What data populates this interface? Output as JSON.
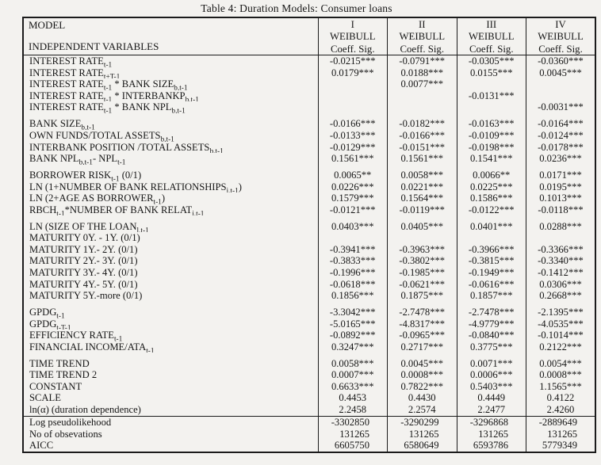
{
  "page": {
    "title": "Table 4: Duration Models: Consumer loans"
  },
  "colors": {
    "background": "#f3f2ef",
    "text": "#161616",
    "rule": "#1b1b1b"
  },
  "table": {
    "corner": {
      "top": "MODEL",
      "bottom": "INDEPENDENT VARIABLES"
    },
    "columns": [
      {
        "numeral": "I",
        "model": "WEIBULL",
        "stat": "Coeff. Sig."
      },
      {
        "numeral": "II",
        "model": "WEIBULL",
        "stat": "Coeff. Sig."
      },
      {
        "numeral": "III",
        "model": "WEIBULL",
        "stat": "Coeff. Sig."
      },
      {
        "numeral": "IV",
        "model": "WEIBULL",
        "stat": "Coeff. Sig."
      }
    ],
    "groups": [
      {
        "rows": [
          {
            "label": "INTEREST RATE_{t-1}",
            "values": [
              "-0.0215***",
              "-0.0791***",
              "-0.0305***",
              "-0.0360***"
            ]
          },
          {
            "label": "INTEREST RATE_{t+T-1}",
            "values": [
              "0.0179***",
              "0.0188***",
              "0.0155***",
              "0.0045***"
            ]
          },
          {
            "label": "INTEREST RATE_{t-1} * BANK SIZE_{b,t-1}",
            "values": [
              "",
              "0.0077***",
              "",
              ""
            ]
          },
          {
            "label": "INTEREST RATE_{t-1} * INTERBANKP_{b,t-1}",
            "values": [
              "",
              "",
              "-0.0131***",
              ""
            ]
          },
          {
            "label": "INTEREST RATE_{t-1} * BANK NPL_{b,t-1}",
            "values": [
              "",
              "",
              "",
              "-0.0031***"
            ]
          }
        ]
      },
      {
        "rows": [
          {
            "label": "BANK SIZE_{b,t-1}",
            "values": [
              "-0.0166***",
              "-0.0182***",
              "-0.0163***",
              "-0.0164***"
            ]
          },
          {
            "label": "OWN FUNDS/TOTAL ASSETS_{b,t-1}",
            "values": [
              "-0.0133***",
              "-0.0166***",
              "-0.0109***",
              "-0.0124***"
            ]
          },
          {
            "label": "INTERBANK POSITION /TOTAL ASSETS_{b,t-1}",
            "values": [
              "-0.0129***",
              "-0.0151***",
              "-0.0198***",
              "-0.0178***"
            ]
          },
          {
            "label": "BANK NPL_{b,t-1}- NPL_{t-1}",
            "values": [
              "0.1561***",
              "0.1561***",
              "0.1541***",
              "0.0236***"
            ]
          }
        ]
      },
      {
        "rows": [
          {
            "label": "BORROWER RISK_{t-1} (0/1)",
            "values": [
              "0.0065**",
              "0.0058***",
              "0.0066**",
              "0.0171***"
            ]
          },
          {
            "label": "LN (1+NUMBER OF BANK RELATIONSHIPS_{j,t-1})",
            "values": [
              "0.0226***",
              "0.0221***",
              "0.0225***",
              "0.0195***"
            ]
          },
          {
            "label": "LN (2+AGE AS BORROWER_{t-1})",
            "values": [
              "0.1579***",
              "0.1564***",
              "0.1586***",
              "0.1013***"
            ]
          },
          {
            "label": "RBCH_{t-1}*NUMBER OF BANK RELAT_{j,t-1}",
            "values": [
              "-0.0121***",
              "-0.0119***",
              "-0.0122***",
              "-0.0118***"
            ]
          }
        ]
      },
      {
        "rows": [
          {
            "label": "LN (SIZE OF THE LOAN_{l,t-1}",
            "values": [
              "0.0403***",
              "0.0405***",
              "0.0401***",
              "0.0288***"
            ]
          },
          {
            "label": "MATURITY 0Y. - 1Y. (0/1)",
            "values": [
              "",
              "",
              "",
              ""
            ]
          },
          {
            "label": "MATURITY 1Y.- 2Y. (0/1)",
            "values": [
              "-0.3941***",
              "-0.3963***",
              "-0.3966***",
              "-0.3366***"
            ]
          },
          {
            "label": "MATURITY 2Y.- 3Y. (0/1)",
            "values": [
              "-0.3833***",
              "-0.3802***",
              "-0.3815***",
              "-0.3340***"
            ]
          },
          {
            "label": "MATURITY 3Y.- 4Y. (0/1)",
            "values": [
              "-0.1996***",
              "-0.1985***",
              "-0.1949***",
              "-0.1412***"
            ]
          },
          {
            "label": "MATURITY 4Y.- 5Y. (0/1)",
            "values": [
              "-0.0618***",
              "-0.0621***",
              "-0.0616***",
              "0.0306***"
            ]
          },
          {
            "label": "MATURITY 5Y.-more (0/1)",
            "values": [
              "0.1856***",
              "0.1875***",
              "0.1857***",
              "0.2668***"
            ]
          }
        ]
      },
      {
        "rows": [
          {
            "label": "GPDG_{t-1}",
            "values": [
              "-3.3042***",
              "-2.7478***",
              "-2.7478***",
              "-2.1395***"
            ]
          },
          {
            "label": "GPDG_{t-T-1}",
            "values": [
              "-5.0165***",
              "-4.8317***",
              "-4.9779***",
              "-4.0535***"
            ]
          },
          {
            "label": "EFFICIENCY RATE_{t-1}",
            "values": [
              "-0.0892***",
              "-0.0965***",
              "-0.0840***",
              "-0.1014***"
            ]
          },
          {
            "label": "FINANCIAL INCOME/ATA_{t-1}",
            "values": [
              "0.3247***",
              "0.2717***",
              "0.3775***",
              "0.2122***"
            ]
          }
        ]
      },
      {
        "rows": [
          {
            "label": "TIME TREND",
            "values": [
              "0.0058***",
              "0.0045***",
              "0.0071***",
              "0.0054***"
            ]
          },
          {
            "label": "TIME TREND 2",
            "values": [
              "0.0007***",
              "0.0008***",
              "0.0006***",
              "0.0008***"
            ]
          },
          {
            "label": "CONSTANT",
            "values": [
              "0.6633***",
              "0.7822***",
              "0.5403***",
              "1.1565***"
            ]
          },
          {
            "label": "SCALE",
            "values": [
              "0.4453",
              "0.4430",
              "0.4449",
              "0.4122"
            ]
          },
          {
            "label": "ln(α) (duration dependence)",
            "values": [
              "2.2458",
              "2.2574",
              "2.2477",
              "2.4260"
            ]
          }
        ]
      }
    ],
    "summary": {
      "rows": [
        {
          "label": "Log pseudolikehood",
          "values": [
            "-3302850",
            "-3290299",
            "-3296868",
            "-2889649"
          ]
        },
        {
          "label": "No of obsevations",
          "values": [
            "131265",
            "131265",
            "131265",
            "131265"
          ]
        },
        {
          "label": "AICC",
          "values": [
            "6605750",
            "6580649",
            "6593786",
            "5779349"
          ]
        }
      ]
    }
  }
}
